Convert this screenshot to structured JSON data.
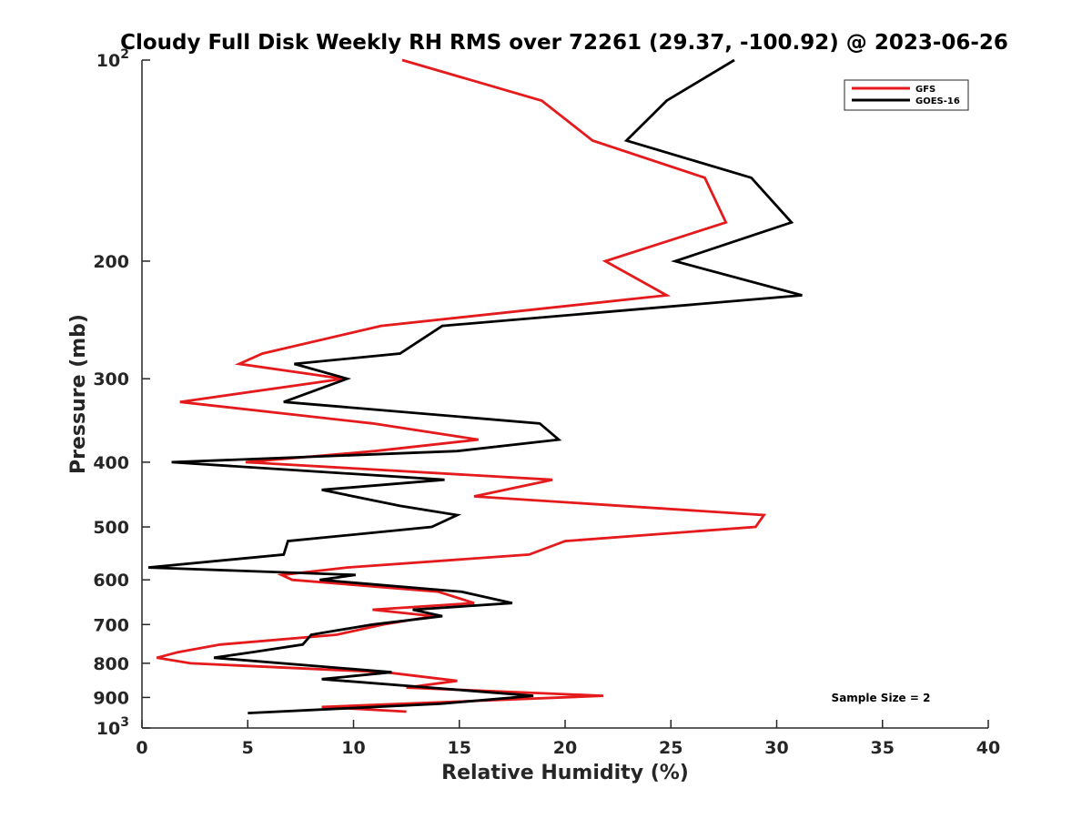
{
  "chart_data": {
    "type": "line",
    "title": "Cloudy Full Disk Weekly RH RMS over 72261 (29.37, -100.92) @ 2023-06-26",
    "xlabel": "Relative Humidity (%)",
    "ylabel": "Pressure (mb)",
    "xlim": [
      0,
      40
    ],
    "ylim": [
      100,
      1000
    ],
    "y_scale": "log",
    "y_reversed": true,
    "grid": false,
    "legend_position": "top-right",
    "x_ticks": [
      "0",
      "5",
      "10",
      "15",
      "20",
      "25",
      "30",
      "35",
      "40"
    ],
    "y_ticks": [
      {
        "value": 100,
        "base": "10",
        "exp": "2"
      },
      {
        "value": 200,
        "label": "200"
      },
      {
        "value": 300,
        "label": "300"
      },
      {
        "value": 400,
        "label": "400"
      },
      {
        "value": 500,
        "label": "500"
      },
      {
        "value": 600,
        "label": "600"
      },
      {
        "value": 700,
        "label": "700"
      },
      {
        "value": 800,
        "label": "800"
      },
      {
        "value": 900,
        "label": "900"
      },
      {
        "value": 1000,
        "base": "10",
        "exp": "3"
      }
    ],
    "annotation": "Sample Size = 2",
    "series": [
      {
        "name": "GFS",
        "color": "#e41a1c",
        "points": [
          [
            12.3,
            100
          ],
          [
            18.9,
            115
          ],
          [
            21.3,
            132
          ],
          [
            26.6,
            150
          ],
          [
            27.6,
            175
          ],
          [
            21.9,
            200
          ],
          [
            24.8,
            225
          ],
          [
            11.3,
            250
          ],
          [
            5.7,
            275
          ],
          [
            4.6,
            285
          ],
          [
            9.5,
            300
          ],
          [
            1.8,
            325
          ],
          [
            10.9,
            350
          ],
          [
            15.9,
            370
          ],
          [
            11.0,
            385
          ],
          [
            4.9,
            400
          ],
          [
            19.4,
            425
          ],
          [
            15.7,
            450
          ],
          [
            29.4,
            480
          ],
          [
            29.0,
            500
          ],
          [
            20.0,
            525
          ],
          [
            18.3,
            550
          ],
          [
            9.7,
            575
          ],
          [
            6.6,
            590
          ],
          [
            7.1,
            600
          ],
          [
            14.0,
            625
          ],
          [
            15.7,
            650
          ],
          [
            10.9,
            665
          ],
          [
            13.8,
            680
          ],
          [
            11.4,
            700
          ],
          [
            9.2,
            725
          ],
          [
            3.7,
            750
          ],
          [
            1.7,
            770
          ],
          [
            0.7,
            785
          ],
          [
            2.3,
            800
          ],
          [
            11.5,
            825
          ],
          [
            14.9,
            850
          ],
          [
            12.5,
            870
          ],
          [
            21.8,
            895
          ],
          [
            8.5,
            930
          ],
          [
            12.5,
            945
          ]
        ]
      },
      {
        "name": "GOES-16",
        "color": "#000000",
        "points": [
          [
            28.0,
            100
          ],
          [
            24.8,
            115
          ],
          [
            22.9,
            132
          ],
          [
            28.8,
            150
          ],
          [
            30.7,
            175
          ],
          [
            25.2,
            200
          ],
          [
            31.2,
            225
          ],
          [
            14.2,
            250
          ],
          [
            12.2,
            275
          ],
          [
            7.2,
            285
          ],
          [
            9.7,
            300
          ],
          [
            6.7,
            325
          ],
          [
            18.8,
            350
          ],
          [
            19.7,
            370
          ],
          [
            14.9,
            385
          ],
          [
            1.4,
            400
          ],
          [
            14.3,
            425
          ],
          [
            8.5,
            440
          ],
          [
            12.2,
            465
          ],
          [
            14.9,
            480
          ],
          [
            13.7,
            500
          ],
          [
            6.9,
            525
          ],
          [
            6.7,
            550
          ],
          [
            0.3,
            575
          ],
          [
            10.1,
            590
          ],
          [
            8.4,
            600
          ],
          [
            15.1,
            625
          ],
          [
            17.5,
            650
          ],
          [
            12.8,
            665
          ],
          [
            14.2,
            680
          ],
          [
            10.9,
            700
          ],
          [
            8.0,
            725
          ],
          [
            7.6,
            750
          ],
          [
            5.2,
            770
          ],
          [
            3.4,
            785
          ],
          [
            11.8,
            825
          ],
          [
            8.5,
            845
          ],
          [
            18.5,
            895
          ],
          [
            14.1,
            920
          ],
          [
            5.0,
            950
          ]
        ]
      }
    ]
  }
}
